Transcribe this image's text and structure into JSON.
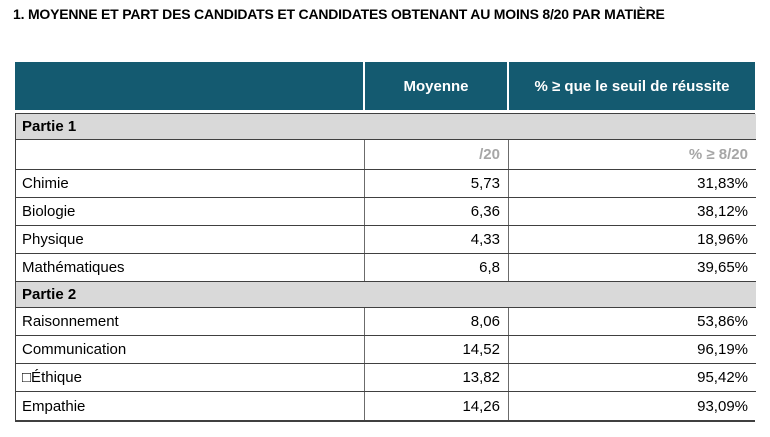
{
  "title": "1. MOYENNE ET PART DES CANDIDATS ET CANDIDATES OBTENANT AU MOINS 8/20 PAR MATIÈRE",
  "colors": {
    "header_bg": "#145A70",
    "header_text": "#FFFFFF",
    "section_bg": "#D9D9D9",
    "subheader_text": "#A6A6A6",
    "border": "#404040"
  },
  "table": {
    "header": {
      "col1": "",
      "col2": "Moyenne",
      "col3": "% ≥ que le seuil de réussite"
    },
    "sections": [
      {
        "label": "Partie 1",
        "subheader": {
          "moyenne": "/20",
          "percent": "% ≥ 8/20"
        },
        "rows": [
          {
            "label": "Chimie",
            "moyenne": "5,73",
            "percent": "31,83%"
          },
          {
            "label": "Biologie",
            "moyenne": "6,36",
            "percent": "38,12%"
          },
          {
            "label": "Physique",
            "moyenne": "4,33",
            "percent": "18,96%"
          },
          {
            "label": "Mathématiques",
            "moyenne": "6,8",
            "percent": "39,65%"
          }
        ]
      },
      {
        "label": "Partie 2",
        "rows": [
          {
            "label": "Raisonnement",
            "moyenne": "8,06",
            "percent": "53,86%"
          },
          {
            "label": "Communication",
            "moyenne": "14,52",
            "percent": "96,19%"
          },
          {
            "label": "□Éthique",
            "moyenne": "13,82",
            "percent": "95,42%"
          },
          {
            "label": "Empathie",
            "moyenne": "14,26",
            "percent": "93,09%"
          }
        ]
      }
    ]
  }
}
